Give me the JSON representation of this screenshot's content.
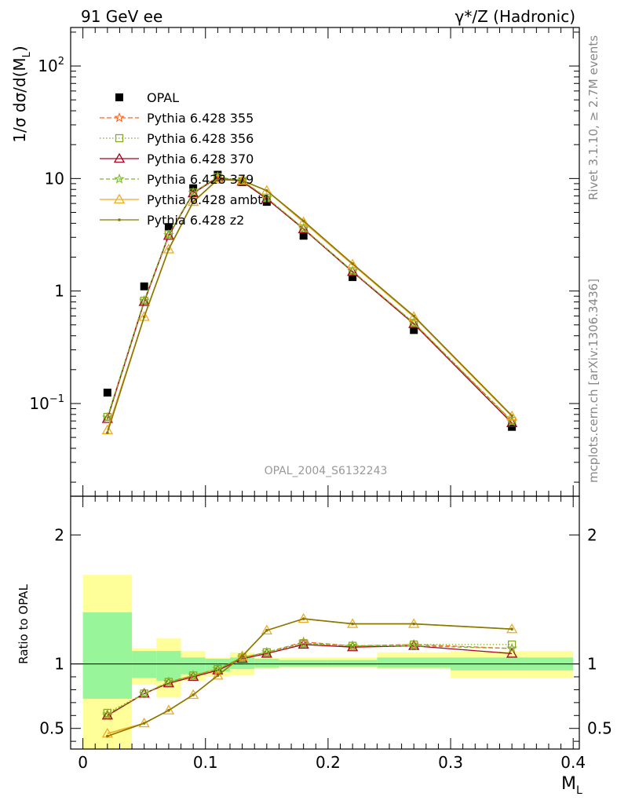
{
  "header": {
    "left_title": "91 GeV ee",
    "right_title": "γ*/Z (Hadronic)"
  },
  "side_labels": {
    "rivet": "Rivet 3.1.10, ≥ 2.7M events",
    "mcplots": "mcplots.cern.ch [arXiv:1306.3436]"
  },
  "watermark": "OPAL_2004_S6132243",
  "main_ylabel": "1/σ dσ/d(M_L)",
  "ratio_ylabel": "Ratio to OPAL",
  "xlabel": "M_L",
  "colors": {
    "opal": "#000000",
    "p355": "#ff6622",
    "p356": "#88aa22",
    "p370": "#aa0022",
    "p379": "#77bb22",
    "ambt1": "#eeaa22",
    "z2": "#887700",
    "band_inner": "#99f599",
    "band_outer": "#ffff99"
  },
  "chart_data": [
    {
      "type": "line",
      "title": "OPAL_2004_S6132243",
      "xlabel": "M_L",
      "ylabel": "1/σ dσ/d(M_L)",
      "yscale": "log",
      "xlim": [
        -0.01,
        0.405
      ],
      "ylim": [
        0.015,
        220
      ],
      "x": [
        0.02,
        0.05,
        0.07,
        0.09,
        0.11,
        0.13,
        0.15,
        0.18,
        0.22,
        0.27,
        0.35
      ],
      "bin_edges": [
        0.0,
        0.04,
        0.06,
        0.08,
        0.1,
        0.12,
        0.14,
        0.16,
        0.2,
        0.24,
        0.3,
        0.4
      ],
      "x_ticks": [
        "0",
        "0.1",
        "0.2",
        "0.3",
        "0.4"
      ],
      "y_ticks": [
        "10^-1",
        "1",
        "10",
        "10^2"
      ],
      "legend": [
        "OPAL",
        "Pythia 6.428 355",
        "Pythia 6.428 356",
        "Pythia 6.428 370",
        "Pythia 6.428 379",
        "Pythia 6.428 ambt1",
        "Pythia 6.428 z2"
      ],
      "legend_position": "top-left",
      "series": [
        {
          "name": "OPAL",
          "key": "opal",
          "marker": "square",
          "values": [
            0.125,
            1.1,
            3.7,
            8.2,
            10.8,
            9.3,
            6.2,
            3.1,
            1.33,
            0.45,
            0.062
          ]
        },
        {
          "name": "Pythia 6.428 355",
          "key": "p355",
          "marker": "star",
          "dash": "6,3",
          "values": [
            0.075,
            0.82,
            3.15,
            7.5,
            10.3,
            9.5,
            6.7,
            3.6,
            1.5,
            0.52,
            0.07
          ]
        },
        {
          "name": "Pythia 6.428 356",
          "key": "p356",
          "marker": "opensquare",
          "dash": "1.5,2.5",
          "values": [
            0.076,
            0.82,
            3.2,
            7.5,
            10.3,
            9.5,
            6.7,
            3.6,
            1.5,
            0.52,
            0.07
          ]
        },
        {
          "name": "Pythia 6.428 370",
          "key": "p370",
          "marker": "opentriangle",
          "dash": "",
          "values": [
            0.073,
            0.8,
            3.1,
            7.4,
            10.2,
            9.4,
            6.6,
            3.55,
            1.48,
            0.51,
            0.067
          ]
        },
        {
          "name": "Pythia 6.428 379",
          "key": "p379",
          "marker": "star",
          "dash": "5,3",
          "values": [
            0.075,
            0.82,
            3.15,
            7.5,
            10.3,
            9.6,
            6.75,
            3.6,
            1.5,
            0.52,
            0.069
          ]
        },
        {
          "name": "Pythia 6.428 ambt1",
          "key": "ambt1",
          "marker": "opentriangle",
          "dash": "",
          "values": [
            0.058,
            0.59,
            2.35,
            6.2,
            9.8,
            9.6,
            7.8,
            4.1,
            1.72,
            0.59,
            0.077
          ]
        },
        {
          "name": "Pythia 6.428 z2",
          "key": "z2",
          "marker": "dot",
          "dash": "",
          "values": [
            0.055,
            0.59,
            2.35,
            6.2,
            9.8,
            9.6,
            7.8,
            4.2,
            1.75,
            0.6,
            0.078
          ]
        }
      ]
    },
    {
      "type": "line",
      "title": "Ratio to OPAL",
      "xlabel": "M_L",
      "ylabel": "Ratio to OPAL",
      "xlim": [
        -0.01,
        0.405
      ],
      "ylim": [
        0.34,
        2.3
      ],
      "y_ticks": [
        "0.5",
        "1",
        "2"
      ],
      "bands": {
        "edges": [
          0.0,
          0.04,
          0.06,
          0.08,
          0.1,
          0.12,
          0.14,
          0.16,
          0.2,
          0.24,
          0.3,
          0.4
        ],
        "inner_low": [
          0.73,
          0.89,
          0.87,
          0.92,
          0.94,
          0.96,
          0.97,
          0.98,
          0.98,
          0.97,
          0.95
        ],
        "inner_high": [
          1.4,
          1.1,
          1.1,
          1.05,
          1.04,
          1.05,
          1.04,
          1.03,
          1.03,
          1.05,
          1.05
        ],
        "outer_low": [
          0.32,
          0.84,
          0.74,
          0.87,
          0.9,
          0.91,
          0.96,
          0.97,
          0.97,
          0.96,
          0.89
        ],
        "outer_high": [
          1.69,
          1.12,
          1.2,
          1.1,
          1.05,
          1.09,
          1.05,
          1.05,
          1.05,
          1.09,
          1.1
        ]
      },
      "series": [
        {
          "name": "Pythia 6.428 355",
          "key": "p355",
          "values": [
            0.6,
            0.77,
            0.86,
            0.91,
            0.96,
            1.05,
            1.09,
            1.17,
            1.14,
            1.15,
            1.12
          ]
        },
        {
          "name": "Pythia 6.428 356",
          "key": "p356",
          "values": [
            0.62,
            0.77,
            0.86,
            0.91,
            0.96,
            1.05,
            1.09,
            1.16,
            1.14,
            1.15,
            1.15
          ]
        },
        {
          "name": "Pythia 6.428 370",
          "key": "p370",
          "values": [
            0.6,
            0.77,
            0.85,
            0.9,
            0.95,
            1.04,
            1.08,
            1.15,
            1.13,
            1.14,
            1.08
          ]
        },
        {
          "name": "Pythia 6.428 379",
          "key": "p379",
          "values": [
            0.61,
            0.77,
            0.86,
            0.91,
            0.96,
            1.05,
            1.09,
            1.16,
            1.14,
            1.14,
            1.12
          ]
        },
        {
          "name": "Pythia 6.428 ambt1",
          "key": "ambt1",
          "values": [
            0.46,
            0.54,
            0.64,
            0.76,
            0.91,
            1.06,
            1.26,
            1.35,
            1.31,
            1.31,
            1.27
          ]
        },
        {
          "name": "Pythia 6.428 z2",
          "key": "z2",
          "values": [
            0.44,
            0.54,
            0.64,
            0.76,
            0.91,
            1.06,
            1.26,
            1.35,
            1.31,
            1.31,
            1.27
          ]
        }
      ]
    }
  ]
}
